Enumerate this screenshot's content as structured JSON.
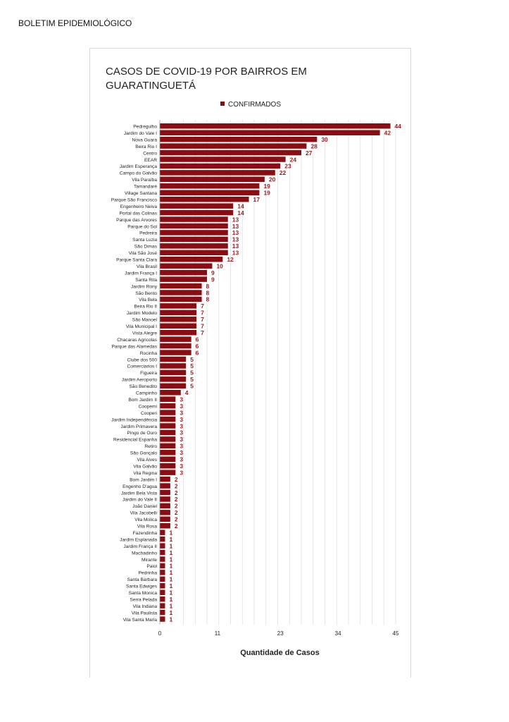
{
  "document": {
    "header": "BOLETIM EPIDEMIOLÓGICO"
  },
  "colors": {
    "bar": "#8b0d12",
    "label": "#9b1a1e",
    "grid": "#dcdcdc",
    "text": "#222222"
  },
  "chart_data": {
    "type": "bar",
    "orientation": "horizontal",
    "title_lines": [
      "CASOS DE COVID-19 POR BAIRROS EM",
      "GUARATINGUETÁ"
    ],
    "legend_position": "top-center",
    "xlabel": "Quantidade de Casos",
    "ylabel": "",
    "xlim": [
      0,
      45
    ],
    "x_ticks": [
      0,
      11,
      23,
      34,
      45
    ],
    "grid": true,
    "series": [
      {
        "name": "CONFIRMADOS",
        "categories": [
          "Pedregulho",
          "Jardim do Vale I",
          "Nova Guara",
          "Beira Rio I",
          "Centro",
          "EEAR",
          "Jardim Esperança",
          "Campo do Galvão",
          "Vila Paraíba",
          "Tamandaré",
          "Village Santana",
          "Parque São Francisco",
          "Engenheiro Neiva",
          "Portal das Colinas",
          "Parque das Arvores",
          "Parque do Sol",
          "Pedreira",
          "Santa Luzia",
          "São Dimas",
          "Vila São José",
          "Parque Santa Clara",
          "Vila Brasil",
          "Jardim França I",
          "Santa Rita",
          "Jardim Rony",
          "São Bento",
          "Vila Bela",
          "Beira Rio II",
          "Jardim Modelo",
          "São Manoel",
          "Vila Municipal I",
          "Vista Alegre",
          "Chacaras Agricolas",
          "Parque das Alamedas",
          "Rocinha",
          "Clube dos 500",
          "Comerciarios I",
          "Figueira",
          "Jardim Aeroporto",
          "São Benedito",
          "Campinho",
          "Bom Jardim II",
          "Coopemi",
          "Cooperi",
          "Jardim Independência",
          "Jardim Primavera",
          "Pingo de Ouro",
          "Residencial Espanha",
          "Retiro",
          "São Gonçalo",
          "Vila Alves",
          "Vila Galvão",
          "Vila Regina",
          "Bom Jardim I",
          "Engenho D'agua",
          "Jardim Bela Vista",
          "Jardim do Vale II",
          "João Daniel",
          "Vila Jacobelli",
          "Vila Molica",
          "Vila Rosa",
          "Fazendinha",
          "Jardim Esplanada",
          "Jardim França II",
          "Machadinho",
          "Mirante",
          "Paiol",
          "Pedrinha",
          "Santa Barbara",
          "Santa Edwiges",
          "Santa Monica",
          "Serra Pelada",
          "Vila Indiana",
          "Vila Paulista",
          "Vila Santa Maria"
        ],
        "values": [
          44,
          42,
          30,
          28,
          27,
          24,
          23,
          22,
          20,
          19,
          19,
          17,
          14,
          14,
          13,
          13,
          13,
          13,
          13,
          13,
          12,
          10,
          9,
          9,
          8,
          8,
          8,
          7,
          7,
          7,
          7,
          7,
          6,
          6,
          6,
          5,
          5,
          5,
          5,
          5,
          4,
          3,
          3,
          3,
          3,
          3,
          3,
          3,
          3,
          3,
          3,
          3,
          3,
          2,
          2,
          2,
          2,
          2,
          2,
          2,
          2,
          1,
          1,
          1,
          1,
          1,
          1,
          1,
          1,
          1,
          1,
          1,
          1,
          1,
          1
        ]
      }
    ]
  }
}
